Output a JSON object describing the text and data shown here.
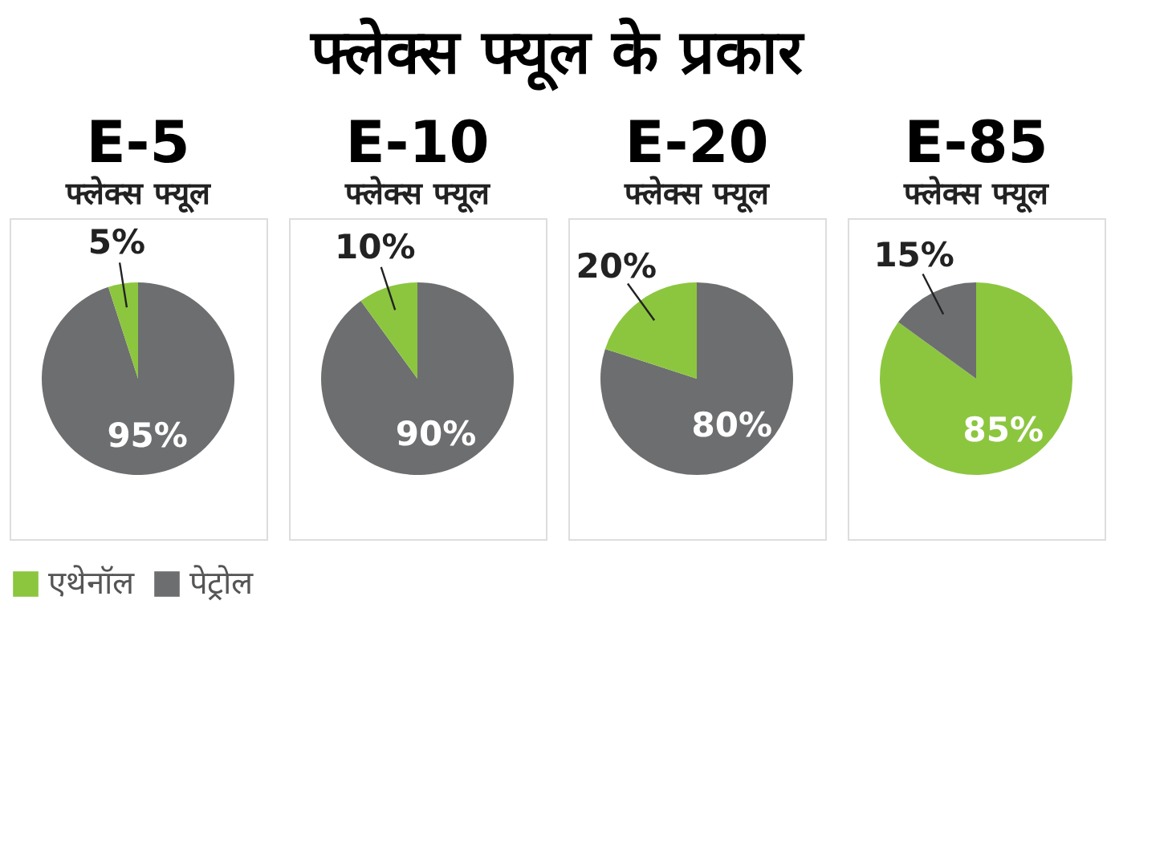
{
  "chart_data": [
    {
      "type": "other",
      "title": "फ्लेक्स फ्यूल के प्रकार"
    },
    {
      "type": "pie",
      "title": "E-5",
      "subtitle": "फ्लेक्स फ्यूल",
      "categories": [
        "पेट्रोल",
        "एथेनॉल"
      ],
      "values": [
        95,
        5
      ],
      "colors": [
        "#6d6e70",
        "#8cc63f"
      ],
      "value_labels": [
        "95%",
        "5%"
      ],
      "legend": "bottom"
    },
    {
      "type": "pie",
      "title": "E-10",
      "subtitle": "फ्लेक्स फ्यूल",
      "values": [
        90,
        10
      ],
      "colors": [
        "#6d6e70",
        "#8cc63f"
      ],
      "value_labels": [
        "90%",
        "10%"
      ]
    },
    {
      "type": "pie",
      "title": "E-20",
      "subtitle": "फ्लेक्स फ्यूल",
      "values": [
        80,
        20
      ],
      "colors": [
        "#6d6e70",
        "#8cc63f"
      ],
      "value_labels": [
        "80%",
        "20%"
      ]
    },
    {
      "type": "pie",
      "title": "E-85",
      "subtitle": "फ्लेक्स फ्यूल",
      "values": [
        85,
        15
      ],
      "colors": [
        "#8cc63f",
        "#6d6e70"
      ],
      "value_labels": [
        "85%",
        "15%"
      ]
    }
  ]
}
